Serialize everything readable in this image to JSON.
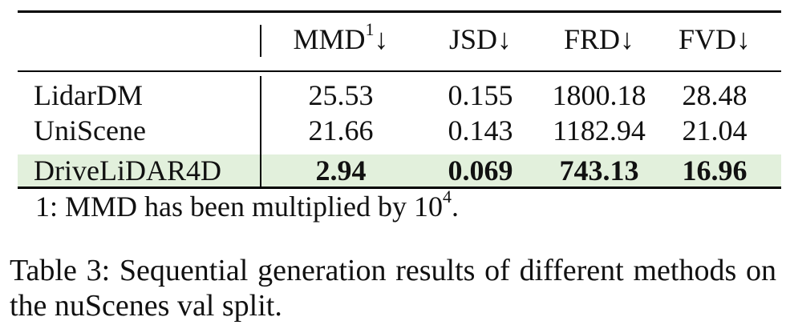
{
  "table": {
    "columns": [
      "",
      "MMD¹↓",
      "JSD↓",
      "FRD↓",
      "FVD↓"
    ],
    "header": {
      "mmd_base": "MMD",
      "mmd_sup": "1",
      "mmd_arrow": "↓",
      "jsd": "JSD↓",
      "frd": "FRD↓",
      "fvd": "FVD↓"
    },
    "rows": [
      {
        "method": "LidarDM",
        "mmd": "25.53",
        "jsd": "0.155",
        "frd": "1800.18",
        "fvd": "28.48",
        "bold": false,
        "highlight": false
      },
      {
        "method": "UniScene",
        "mmd": "21.66",
        "jsd": "0.143",
        "frd": "1182.94",
        "fvd": "21.04",
        "bold": false,
        "highlight": false
      },
      {
        "method": "DriveLiDAR4D",
        "mmd": "2.94",
        "jsd": "0.069",
        "frd": "743.13",
        "fvd": "16.96",
        "bold": true,
        "highlight": true
      }
    ],
    "highlight_color": "#e2f0dc"
  },
  "footnote": {
    "text": "1: MMD has been multiplied by 10",
    "exponent": "4",
    "end": "."
  },
  "caption": "Table 3: Sequential generation results of different methods on the nuScenes val split."
}
